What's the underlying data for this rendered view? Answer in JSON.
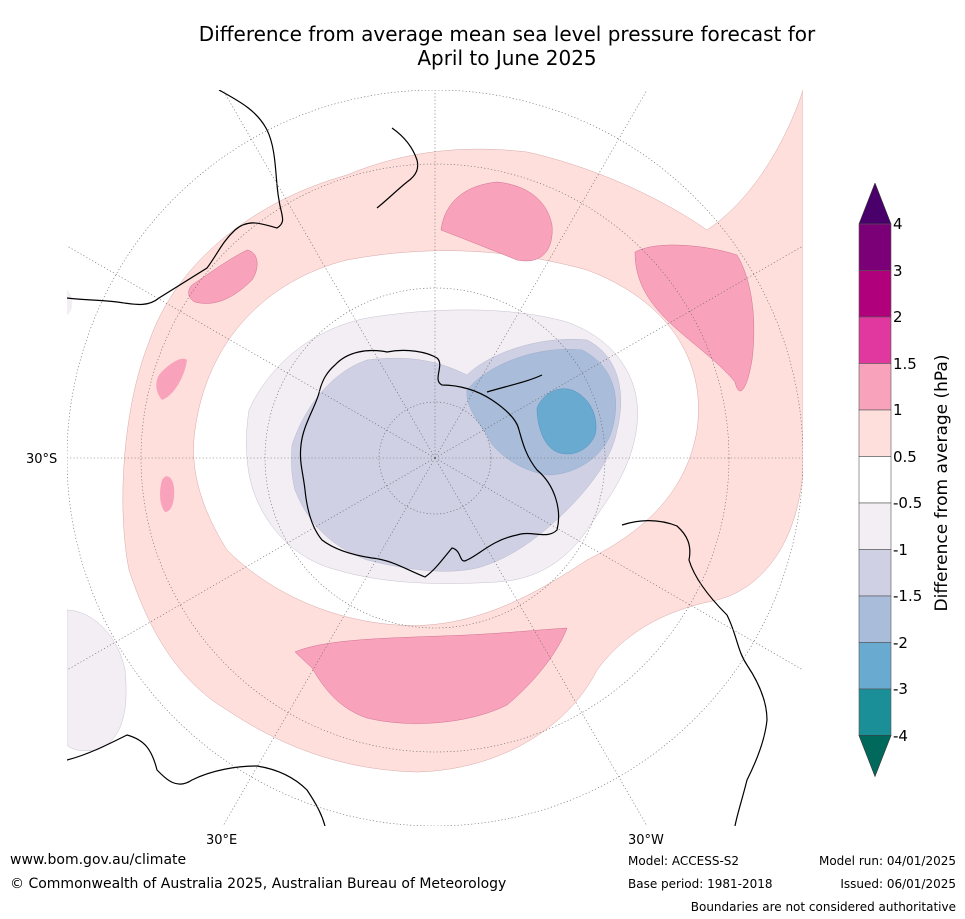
{
  "title_line1": "Difference from average mean sea level pressure forecast for",
  "title_line2": "April to June 2025",
  "map": {
    "projection": "south polar stereographic",
    "lat_label": "30°S",
    "lon_label_e": "30°E",
    "lon_label_w": "30°W",
    "fill_colors": {
      "lt_-4": "#00695c",
      "-4_-3": "#1b8f98",
      "-3_-2": "#68aad0",
      "-2_-1.5": "#a9bcd9",
      "-1.5_-1": "#cfd0e4",
      "-1_-0.5": "#f2eef4",
      "-0.5_0.5": "#ffffff",
      "0.5_1": "#fedfdc",
      "1_1.5": "#f9a2bc",
      "1.5_2": "#e0389f",
      "2_3": "#b1007b",
      "3_4": "#7b0077",
      "gt_4": "#49006a"
    }
  },
  "colorbar": {
    "label": "Difference from average (hPa)",
    "ticks": [
      "4",
      "3",
      "2",
      "1.5",
      "1",
      "0.5",
      "-0.5",
      "-1",
      "-1.5",
      "-2",
      "-3",
      "-4"
    ],
    "colors_top_to_bottom": [
      "#49006a",
      "#7b0077",
      "#b1007b",
      "#e0389f",
      "#f9a2bc",
      "#fedfdc",
      "#ffffff",
      "#f2eef4",
      "#cfd0e4",
      "#a9bcd9",
      "#68aad0",
      "#1b8f98",
      "#00695c"
    ]
  },
  "footer": {
    "url": "www.bom.gov.au/climate",
    "copyright": "© Commonwealth of Australia 2025, Australian Bureau of Meteorology",
    "model": "Model: ACCESS-S2",
    "base_period": "Base period: 1981-2018",
    "model_run": "Model run: 04/01/2025",
    "issued": "Issued: 06/01/2025",
    "disclaimer": "Boundaries are not considered authoritative"
  }
}
